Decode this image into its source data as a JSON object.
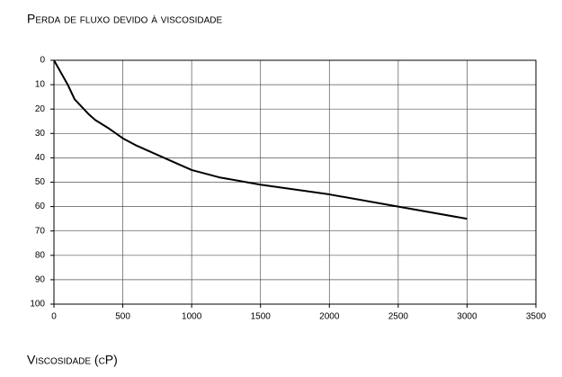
{
  "chart_data": {
    "type": "line",
    "title": "Perda de fluxo devido à viscosidade",
    "x_label": "Viscosidade (cP)",
    "x": [
      0,
      50,
      100,
      150,
      200,
      250,
      300,
      400,
      500,
      600,
      800,
      1000,
      1200,
      1500,
      2000,
      2500,
      3000
    ],
    "series": [
      {
        "color": "#000000",
        "values": [
          0,
          5,
          10,
          16,
          19,
          22,
          24.5,
          28,
          32,
          35,
          40,
          45,
          48,
          51,
          55,
          60,
          65
        ]
      }
    ],
    "xlim": [
      0,
      3500
    ],
    "xticks": [
      0,
      500,
      1000,
      1500,
      2000,
      2500,
      3000,
      3500
    ],
    "ylim": [
      100,
      0
    ],
    "yticks": [
      0,
      10,
      20,
      30,
      40,
      50,
      60,
      70,
      80,
      90,
      100
    ],
    "grid": true
  }
}
